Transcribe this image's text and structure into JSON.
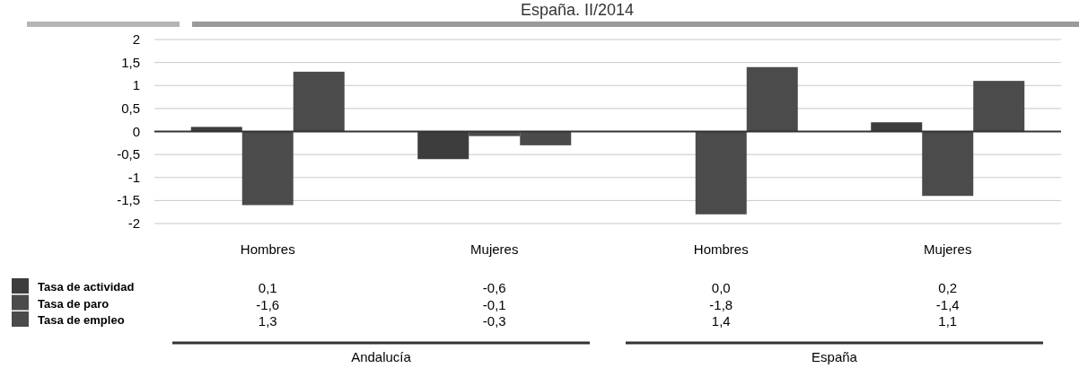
{
  "chart_data": {
    "type": "bar",
    "title": "España. II/2014",
    "categories": [
      "Hombres",
      "Mujeres",
      "Hombres",
      "Mujeres"
    ],
    "series": [
      {
        "name": "Tasa de actividad",
        "color": "#3d3d3d",
        "values": [
          0.1,
          -0.6,
          0.0,
          0.2
        ],
        "value_labels": [
          "0,1",
          "-0,6",
          "0,0",
          "0,2"
        ]
      },
      {
        "name": "Tasa de paro",
        "color": "#4b4b4b",
        "values": [
          -1.6,
          -0.1,
          -1.8,
          -1.4
        ],
        "value_labels": [
          "-1,6",
          "-0,1",
          "-1,8",
          "-1,4"
        ]
      },
      {
        "name": "Tasa de empleo",
        "color": "#4b4b4b",
        "values": [
          1.3,
          -0.3,
          1.4,
          1.1
        ],
        "value_labels": [
          "1,3",
          "-0,3",
          "1,4",
          "1,1"
        ]
      }
    ],
    "ylim": [
      -2,
      2
    ],
    "yticks": [
      {
        "value": -2,
        "label": "-2"
      },
      {
        "value": -1.5,
        "label": "-1,5"
      },
      {
        "value": -1,
        "label": "-1"
      },
      {
        "value": -0.5,
        "label": "-0,5"
      },
      {
        "value": 0,
        "label": "0"
      },
      {
        "value": 0.5,
        "label": "0,5"
      },
      {
        "value": 1,
        "label": "1"
      },
      {
        "value": 1.5,
        "label": "1,5"
      },
      {
        "value": 2,
        "label": "2"
      }
    ],
    "grid": "y",
    "legend": "bottom",
    "annotations": [
      "Andalucía",
      "España"
    ]
  }
}
